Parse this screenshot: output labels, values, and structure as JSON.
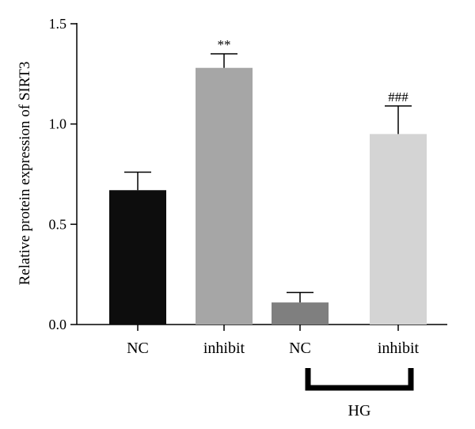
{
  "chart_data": {
    "type": "bar",
    "categories": [
      "NC",
      "inhibit",
      "NC",
      "inhibit"
    ],
    "values": [
      0.67,
      1.28,
      0.11,
      0.95
    ],
    "errors": [
      0.09,
      0.07,
      0.05,
      0.14
    ],
    "colors": [
      "#0d0d0d",
      "#a6a6a6",
      "#7f7f7f",
      "#d4d4d4"
    ],
    "annotations": [
      "",
      "**",
      "",
      "###"
    ],
    "title": "",
    "xlabel": "",
    "ylabel": "Relative protein expression of SIRT3",
    "ylim": [
      0,
      1.5
    ],
    "yticks": [
      0.0,
      0.5,
      1.0,
      1.5
    ],
    "ytick_labels": [
      "0.0",
      "0.5",
      "1.0",
      "1.5"
    ],
    "grid": false,
    "legend": "none",
    "group_bracket": {
      "label": "HG",
      "categories": [
        2,
        3
      ]
    }
  }
}
